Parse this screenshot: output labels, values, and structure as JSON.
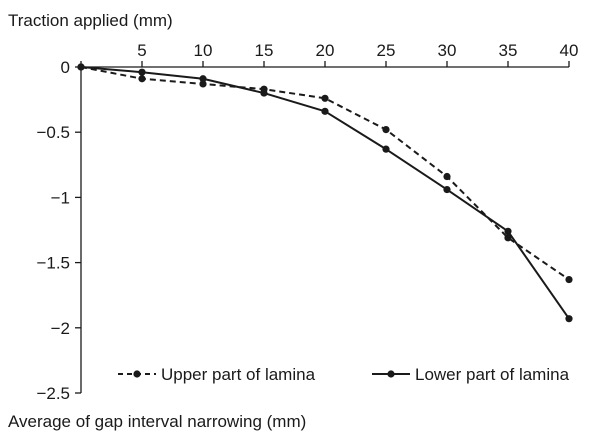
{
  "chart_data": {
    "type": "line",
    "xlabel": "Traction applied (mm)",
    "ylabel": "Average of gap interval narrowing (mm)",
    "xlim": [
      0,
      40
    ],
    "ylim": [
      -2.5,
      0
    ],
    "x_axis_position": "top",
    "x_ticks": [
      5,
      10,
      15,
      20,
      25,
      30,
      35,
      40
    ],
    "y_ticks": [
      0,
      -0.5,
      -1,
      -1.5,
      -2,
      -2.5
    ],
    "grid": false,
    "legend_position": "bottom",
    "x": [
      0,
      5,
      10,
      15,
      20,
      25,
      30,
      35,
      40
    ],
    "series": [
      {
        "name": "Upper part of lamina",
        "line_style": "dashed",
        "values": [
          0,
          -0.09,
          -0.13,
          -0.17,
          -0.24,
          -0.48,
          -0.84,
          -1.31,
          -1.63
        ]
      },
      {
        "name": "Lower part of lamina",
        "line_style": "solid",
        "values": [
          0,
          -0.04,
          -0.09,
          -0.2,
          -0.34,
          -0.63,
          -0.94,
          -1.26,
          -1.93
        ]
      }
    ]
  },
  "colors": {
    "series": "#1a1a1a",
    "axis": "#1a1a1a",
    "background": "#ffffff"
  }
}
